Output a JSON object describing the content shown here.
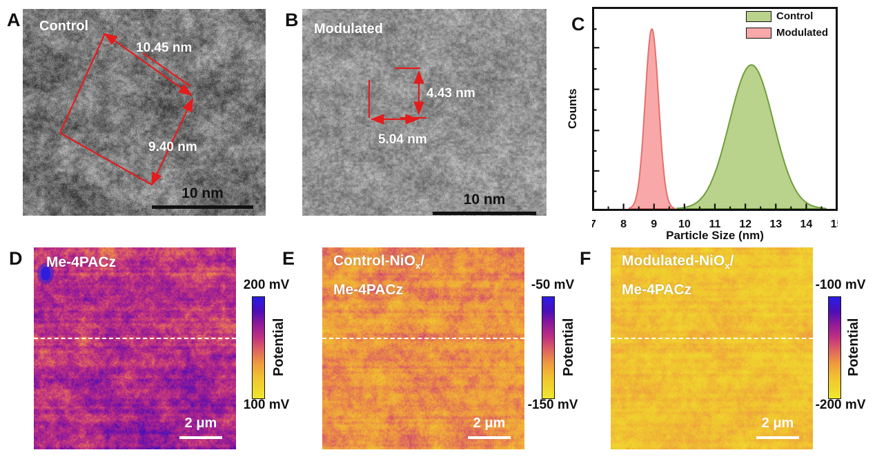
{
  "panels": {
    "a": {
      "letter": "A",
      "title": "Control",
      "measurement_long": "10.45 nm",
      "measurement_short": "9.40 nm",
      "scalebar_label": "10 nm"
    },
    "b": {
      "letter": "B",
      "title": "Modulated",
      "measurement_vertical": "4.43 nm",
      "measurement_horizontal": "5.04 nm",
      "scalebar_label": "10 nm"
    },
    "c": {
      "letter": "C"
    },
    "d": {
      "letter": "D",
      "title": "Me-4PACz",
      "colorbar_top": "200 mV",
      "colorbar_bottom": "100 mV",
      "colorbar_label": "Potential",
      "scalebar_label": "2 μm"
    },
    "e": {
      "letter": "E",
      "title_pre": "Control-NiO",
      "title_sub": "x",
      "title_post": "/",
      "title_line2": "Me-4PACz",
      "colorbar_top": "-50 mV",
      "colorbar_bottom": "-150 mV",
      "colorbar_label": "Potential",
      "scalebar_label": "2 μm"
    },
    "f": {
      "letter": "F",
      "title_pre": "Modulated-NiO",
      "title_sub": "x",
      "title_post": "/",
      "title_line2": "Me-4PACz",
      "colorbar_top": "-100 mV",
      "colorbar_bottom": "-200 mV",
      "colorbar_label": "Potential",
      "scalebar_label": "2 μm"
    }
  },
  "chart_data": {
    "type": "area",
    "title": "",
    "xlabel": "Particle Size (nm)",
    "ylabel": "Counts",
    "xlim": [
      7,
      15
    ],
    "xticks": [
      7,
      8,
      9,
      10,
      11,
      12,
      13,
      14,
      15
    ],
    "minor_tick_step": 0.5,
    "y_axis_labels": "none (counts, unlabeled ticks)",
    "legend_position": "top-right",
    "grid": false,
    "series": [
      {
        "name": "Control",
        "distribution": "gaussian",
        "mean_nm": 12.2,
        "sigma_nm": 0.72,
        "peak_height_fraction": 0.72,
        "foot_range_nm": [
          10.3,
          14.0
        ],
        "fill": "#b9d28c",
        "stroke": "#6f9e3a"
      },
      {
        "name": "Modulated",
        "distribution": "gaussian",
        "mean_nm": 8.93,
        "sigma_nm": 0.22,
        "peak_height_fraction": 0.9,
        "foot_range_nm": [
          8.4,
          9.6
        ],
        "fill": "#f8a8a8",
        "stroke": "#e4706d"
      }
    ]
  },
  "kpfm": {
    "palette_stops": [
      {
        "at": 0.0,
        "color": "#efe72e"
      },
      {
        "at": 0.18,
        "color": "#f0c92f"
      },
      {
        "at": 0.34,
        "color": "#ef9c3e"
      },
      {
        "at": 0.5,
        "color": "#d95a66"
      },
      {
        "at": 0.6,
        "color": "#c03181"
      },
      {
        "at": 0.74,
        "color": "#8c189a"
      },
      {
        "at": 0.86,
        "color": "#4a0fb8"
      },
      {
        "at": 1.0,
        "color": "#2a1ce4"
      }
    ],
    "maps": {
      "d": {
        "value_low": 0.3,
        "value_high": 0.95,
        "tilt": 0.1,
        "has_blue_spot": true
      },
      "e": {
        "value_low": 0.12,
        "value_high": 0.62,
        "tilt": 0.0,
        "has_blue_spot": false
      },
      "f": {
        "value_low": 0.02,
        "value_high": 0.4,
        "tilt": 0.0,
        "has_blue_spot": false
      }
    }
  },
  "colors": {
    "measure_red": "#e31c1c",
    "frame_black": "#111111",
    "text_white": "#ffffff"
  }
}
